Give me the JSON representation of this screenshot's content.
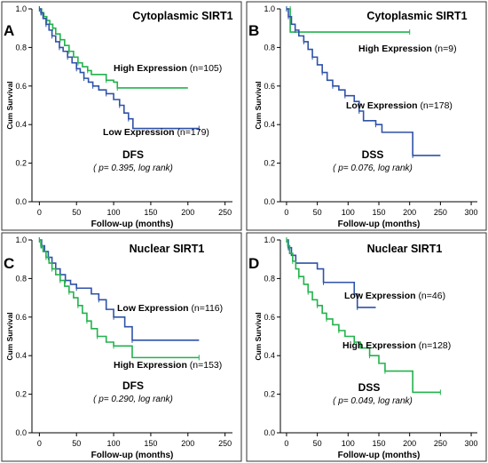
{
  "figure": {
    "colors": {
      "green": "#22b24c",
      "blue": "#2f52a8",
      "axis": "#000000"
    }
  },
  "chart_data": [
    {
      "id": "A",
      "type": "line",
      "title": "Cytoplasmic SIRT1",
      "xlabel": "Follow-up (months)",
      "ylabel": "Cum Survival",
      "xlim": [
        -10,
        260
      ],
      "ylim": [
        0,
        1.0
      ],
      "xticks": [
        0,
        50,
        100,
        150,
        200,
        250
      ],
      "yticks": [
        0.0,
        0.2,
        0.4,
        0.6,
        0.8,
        1.0
      ],
      "endpoint": "DFS",
      "pvalue_text": "( p= 0.395, log rank)",
      "series": [
        {
          "name": "High Expression",
          "n_label": "(n=105)",
          "color": "#22b24c",
          "points": [
            [
              0,
              1.0
            ],
            [
              3,
              0.98
            ],
            [
              6,
              0.96
            ],
            [
              10,
              0.94
            ],
            [
              14,
              0.92
            ],
            [
              18,
              0.9
            ],
            [
              22,
              0.87
            ],
            [
              28,
              0.84
            ],
            [
              34,
              0.81
            ],
            [
              40,
              0.78
            ],
            [
              46,
              0.75
            ],
            [
              52,
              0.72
            ],
            [
              58,
              0.7
            ],
            [
              65,
              0.68
            ],
            [
              70,
              0.66
            ],
            [
              90,
              0.63
            ],
            [
              100,
              0.62
            ],
            [
              105,
              0.59
            ],
            [
              200,
              0.59
            ]
          ]
        },
        {
          "name": "Low Expression",
          "n_label": "(n=179)",
          "color": "#2f52a8",
          "points": [
            [
              0,
              1.0
            ],
            [
              2,
              0.98
            ],
            [
              5,
              0.95
            ],
            [
              9,
              0.92
            ],
            [
              13,
              0.89
            ],
            [
              17,
              0.86
            ],
            [
              22,
              0.83
            ],
            [
              27,
              0.8
            ],
            [
              32,
              0.78
            ],
            [
              38,
              0.75
            ],
            [
              44,
              0.72
            ],
            [
              50,
              0.69
            ],
            [
              55,
              0.67
            ],
            [
              60,
              0.64
            ],
            [
              66,
              0.62
            ],
            [
              72,
              0.6
            ],
            [
              80,
              0.58
            ],
            [
              90,
              0.56
            ],
            [
              100,
              0.53
            ],
            [
              108,
              0.5
            ],
            [
              114,
              0.46
            ],
            [
              120,
              0.43
            ],
            [
              126,
              0.38
            ],
            [
              215,
              0.38
            ]
          ]
        }
      ]
    },
    {
      "id": "B",
      "type": "line",
      "title": "Cytoplasmic SIRT1",
      "xlabel": "Follow-up (months)",
      "ylabel": "Cum Survival",
      "xlim": [
        -10,
        310
      ],
      "ylim": [
        0,
        1.0
      ],
      "xticks": [
        0,
        50,
        100,
        150,
        200,
        250,
        300
      ],
      "yticks": [
        0.0,
        0.2,
        0.4,
        0.6,
        0.8,
        1.0
      ],
      "endpoint": "DSS",
      "pvalue_text": "( p= 0.076, log rank)",
      "series": [
        {
          "name": "High Expression",
          "n_label": "(n=9)",
          "color": "#22b24c",
          "points": [
            [
              0,
              1.0
            ],
            [
              6,
              1.0
            ],
            [
              6,
              0.88
            ],
            [
              200,
              0.88
            ]
          ]
        },
        {
          "name": "Low Expression",
          "n_label": "(n=178)",
          "color": "#2f52a8",
          "points": [
            [
              0,
              1.0
            ],
            [
              3,
              0.96
            ],
            [
              8,
              0.92
            ],
            [
              14,
              0.89
            ],
            [
              20,
              0.86
            ],
            [
              28,
              0.83
            ],
            [
              35,
              0.79
            ],
            [
              42,
              0.75
            ],
            [
              50,
              0.71
            ],
            [
              58,
              0.67
            ],
            [
              66,
              0.63
            ],
            [
              75,
              0.6
            ],
            [
              85,
              0.58
            ],
            [
              95,
              0.55
            ],
            [
              110,
              0.52
            ],
            [
              118,
              0.47
            ],
            [
              125,
              0.42
            ],
            [
              145,
              0.4
            ],
            [
              155,
              0.36
            ],
            [
              205,
              0.24
            ],
            [
              250,
              0.24
            ]
          ]
        }
      ]
    },
    {
      "id": "C",
      "type": "line",
      "title": "Nuclear SIRT1",
      "xlabel": "Follow-up (months)",
      "ylabel": "Cum Survival",
      "xlim": [
        -10,
        260
      ],
      "ylim": [
        0,
        1.0
      ],
      "xticks": [
        0,
        50,
        100,
        150,
        200,
        250
      ],
      "yticks": [
        0.0,
        0.2,
        0.4,
        0.6,
        0.8,
        1.0
      ],
      "endpoint": "DFS",
      "pvalue_text": "( p= 0.290, log rank)",
      "series": [
        {
          "name": "Low Expression",
          "n_label": "(n=116)",
          "color": "#2f52a8",
          "points": [
            [
              0,
              1.0
            ],
            [
              3,
              0.97
            ],
            [
              7,
              0.94
            ],
            [
              12,
              0.91
            ],
            [
              17,
              0.88
            ],
            [
              22,
              0.85
            ],
            [
              28,
              0.82
            ],
            [
              35,
              0.79
            ],
            [
              42,
              0.77
            ],
            [
              50,
              0.75
            ],
            [
              70,
              0.72
            ],
            [
              80,
              0.69
            ],
            [
              90,
              0.64
            ],
            [
              100,
              0.6
            ],
            [
              115,
              0.55
            ],
            [
              125,
              0.48
            ],
            [
              215,
              0.48
            ]
          ]
        },
        {
          "name": "High Expression",
          "n_label": "(n=153)",
          "color": "#22b24c",
          "points": [
            [
              0,
              1.0
            ],
            [
              2,
              0.97
            ],
            [
              5,
              0.94
            ],
            [
              9,
              0.91
            ],
            [
              13,
              0.88
            ],
            [
              17,
              0.85
            ],
            [
              22,
              0.82
            ],
            [
              28,
              0.79
            ],
            [
              34,
              0.76
            ],
            [
              40,
              0.73
            ],
            [
              46,
              0.7
            ],
            [
              52,
              0.66
            ],
            [
              58,
              0.62
            ],
            [
              64,
              0.58
            ],
            [
              70,
              0.54
            ],
            [
              78,
              0.5
            ],
            [
              90,
              0.47
            ],
            [
              100,
              0.45
            ],
            [
              125,
              0.39
            ],
            [
              215,
              0.39
            ]
          ]
        }
      ]
    },
    {
      "id": "D",
      "type": "line",
      "title": "Nuclear SIRT1",
      "xlabel": "Follow-up (months)",
      "ylabel": "Cum Survival",
      "xlim": [
        -10,
        310
      ],
      "ylim": [
        0,
        1.0
      ],
      "xticks": [
        0,
        50,
        100,
        150,
        200,
        250,
        300
      ],
      "yticks": [
        0.0,
        0.2,
        0.4,
        0.6,
        0.8,
        1.0
      ],
      "endpoint": "DSS",
      "pvalue_text": "( p= 0.049, log rank)",
      "series": [
        {
          "name": "Low Expression",
          "n_label": "(n=46)",
          "color": "#2f52a8",
          "points": [
            [
              0,
              1.0
            ],
            [
              3,
              0.96
            ],
            [
              8,
              0.92
            ],
            [
              15,
              0.88
            ],
            [
              50,
              0.85
            ],
            [
              60,
              0.78
            ],
            [
              110,
              0.72
            ],
            [
              115,
              0.65
            ],
            [
              145,
              0.65
            ]
          ]
        },
        {
          "name": "High Expression",
          "n_label": "(n=128)",
          "color": "#22b24c",
          "points": [
            [
              0,
              1.0
            ],
            [
              2,
              0.97
            ],
            [
              5,
              0.93
            ],
            [
              10,
              0.89
            ],
            [
              15,
              0.85
            ],
            [
              20,
              0.81
            ],
            [
              28,
              0.77
            ],
            [
              35,
              0.73
            ],
            [
              42,
              0.69
            ],
            [
              50,
              0.66
            ],
            [
              58,
              0.62
            ],
            [
              65,
              0.59
            ],
            [
              75,
              0.56
            ],
            [
              85,
              0.53
            ],
            [
              95,
              0.5
            ],
            [
              110,
              0.47
            ],
            [
              120,
              0.44
            ],
            [
              135,
              0.4
            ],
            [
              150,
              0.36
            ],
            [
              160,
              0.32
            ],
            [
              205,
              0.21
            ],
            [
              250,
              0.21
            ]
          ]
        }
      ]
    }
  ]
}
